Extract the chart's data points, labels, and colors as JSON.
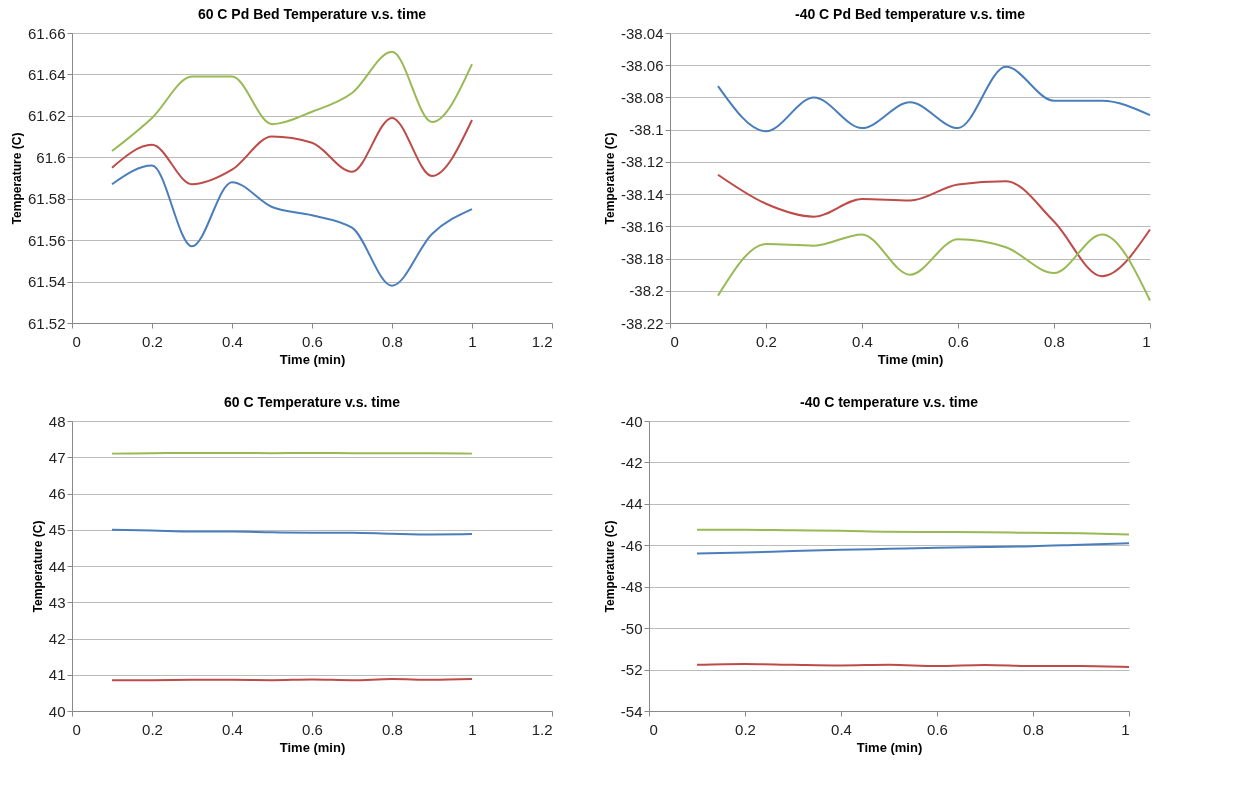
{
  "chart_data": [
    {
      "type": "line",
      "title": "60 C Pd Bed Temperature v.s. time",
      "xlabel": "Time (min)",
      "ylabel": "Temperature (C)",
      "x": [
        0.1,
        0.2,
        0.3,
        0.4,
        0.5,
        0.6,
        0.7,
        0.8,
        0.9,
        1
      ],
      "xlim": [
        0,
        1.2
      ],
      "xticks": [
        0,
        0.2,
        0.4,
        0.6,
        0.8,
        1,
        1.2
      ],
      "ylim": [
        61.52,
        61.66
      ],
      "yticks": [
        61.52,
        61.54,
        61.56,
        61.58,
        61.6,
        61.62,
        61.64,
        61.66
      ],
      "grid": "y",
      "series": [
        {
          "color": "#4a7ebb",
          "values": [
            61.587,
            61.596,
            61.557,
            61.588,
            61.576,
            61.572,
            61.566,
            61.538,
            61.563,
            61.575
          ]
        },
        {
          "color": "#be4b48",
          "values": [
            61.595,
            61.606,
            61.587,
            61.594,
            61.61,
            61.607,
            61.593,
            61.619,
            61.591,
            61.618
          ]
        },
        {
          "color": "#98b954",
          "values": [
            61.603,
            61.619,
            61.639,
            61.639,
            61.616,
            61.622,
            61.631,
            61.651,
            61.617,
            61.645
          ]
        }
      ]
    },
    {
      "type": "line",
      "title": "-40 C Pd Bed temperature v.s. time",
      "xlabel": "Time (min)",
      "ylabel": "Temperature (C)",
      "x": [
        0.1,
        0.2,
        0.3,
        0.4,
        0.5,
        0.6,
        0.7,
        0.8,
        0.9,
        1
      ],
      "xlim": [
        0,
        1
      ],
      "xticks": [
        0,
        0.2,
        0.4,
        0.6,
        0.8,
        1
      ],
      "ylim": [
        -38.22,
        -38.04
      ],
      "yticks": [
        -38.22,
        -38.2,
        -38.18,
        -38.16,
        -38.14,
        -38.12,
        -38.1,
        -38.08,
        -38.06,
        -38.04
      ],
      "grid": "y",
      "series": [
        {
          "color": "#4a7ebb",
          "values": [
            -38.073,
            -38.101,
            -38.08,
            -38.099,
            -38.083,
            -38.099,
            -38.061,
            -38.082,
            -38.082,
            -38.091
          ]
        },
        {
          "color": "#be4b48",
          "values": [
            -38.128,
            -38.146,
            -38.154,
            -38.143,
            -38.144,
            -38.134,
            -38.132,
            -38.157,
            -38.191,
            -38.162
          ]
        },
        {
          "color": "#98b954",
          "values": [
            -38.203,
            -38.171,
            -38.172,
            -38.165,
            -38.19,
            -38.168,
            -38.173,
            -38.189,
            -38.165,
            -38.206
          ]
        }
      ]
    },
    {
      "type": "line",
      "title": "60 C Temperature v.s. time",
      "xlabel": "Time (min)",
      "ylabel": "Temperature (C)",
      "x": [
        0.1,
        0.2,
        0.3,
        0.4,
        0.5,
        0.6,
        0.7,
        0.8,
        0.9,
        1
      ],
      "xlim": [
        0,
        1.2
      ],
      "xticks": [
        0,
        0.2,
        0.4,
        0.6,
        0.8,
        1,
        1.2
      ],
      "ylim": [
        40,
        48
      ],
      "yticks": [
        40,
        41,
        42,
        43,
        44,
        45,
        46,
        47,
        48
      ],
      "grid": "y",
      "series": [
        {
          "color": "#4a7ebb",
          "values": [
            45.0,
            44.98,
            44.95,
            44.95,
            44.93,
            44.92,
            44.92,
            44.89,
            44.87,
            44.88
          ]
        },
        {
          "color": "#be4b48",
          "values": [
            40.85,
            40.85,
            40.86,
            40.86,
            40.85,
            40.87,
            40.85,
            40.88,
            40.86,
            40.88
          ]
        },
        {
          "color": "#98b954",
          "values": [
            47.1,
            47.11,
            47.12,
            47.12,
            47.11,
            47.12,
            47.11,
            47.11,
            47.11,
            47.1
          ]
        }
      ]
    },
    {
      "type": "line",
      "title": "-40 C temperature v.s. time",
      "xlabel": "Time (min)",
      "ylabel": "Temperature (C)",
      "x": [
        0.1,
        0.2,
        0.3,
        0.4,
        0.5,
        0.6,
        0.7,
        0.8,
        0.9,
        1
      ],
      "xlim": [
        0,
        1
      ],
      "xticks": [
        0,
        0.2,
        0.4,
        0.6,
        0.8,
        1
      ],
      "ylim": [
        -54,
        -40
      ],
      "yticks": [
        -54,
        -52,
        -50,
        -48,
        -46,
        -44,
        -42,
        -40
      ],
      "grid": "y",
      "series": [
        {
          "color": "#4a7ebb",
          "values": [
            -46.4,
            -46.35,
            -46.28,
            -46.22,
            -46.17,
            -46.12,
            -46.08,
            -46.05,
            -45.97,
            -45.9
          ]
        },
        {
          "color": "#be4b48",
          "values": [
            -51.77,
            -51.73,
            -51.77,
            -51.8,
            -51.77,
            -51.83,
            -51.78,
            -51.83,
            -51.83,
            -51.88
          ]
        },
        {
          "color": "#98b954",
          "values": [
            -45.25,
            -45.25,
            -45.28,
            -45.3,
            -45.35,
            -45.36,
            -45.37,
            -45.4,
            -45.42,
            -45.48
          ]
        }
      ]
    }
  ]
}
